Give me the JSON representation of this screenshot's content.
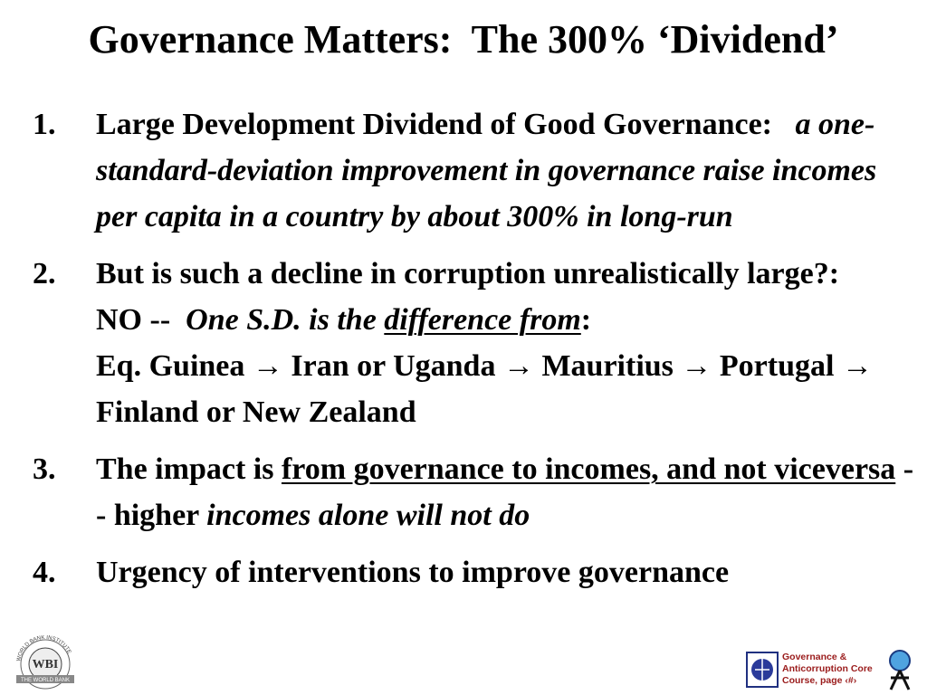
{
  "title": "Governance Matters:  The 300% ‘Dividend’",
  "items": [
    {
      "number": "1.",
      "segments": [
        "Large Development Dividend of Good Governance:",
        "a one-standard-deviation improvement in governance raise incomes per capita in a country by about 300% in long-run"
      ]
    },
    {
      "number": "2.",
      "segments": [
        "But is such a decline in corruption unrealistically large?:    NO --",
        "One S.D. is the",
        "difference from",
        ":",
        "Eq. Guinea → Iran or Uganda → Mauritius → Portugal → Finland or New Zealand"
      ]
    },
    {
      "number": "3.",
      "segments": [
        "The impact is",
        "from governance to incomes, and not viceversa",
        "-- higher",
        "incomes alone will not do"
      ]
    },
    {
      "number": "4.",
      "segments": [
        "Urgency of interventions to improve governance"
      ]
    }
  ],
  "footer": {
    "logo_left": "WBI",
    "logo_left_ring": "WORLD BANK INSTITUTE",
    "logo_left_band": "THE WORLD BANK",
    "course": [
      "Governance &",
      "Anticorruption Core",
      "Course, page ‹#›"
    ]
  }
}
